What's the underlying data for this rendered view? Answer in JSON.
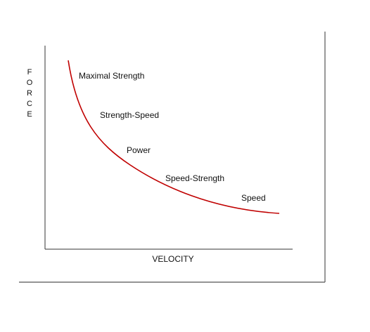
{
  "y_axis_title": "FORCE",
  "x_axis_title": "VELOCITY",
  "labels": [
    "Maximal Strength",
    "Strength-Speed",
    "Power",
    "Speed-Strength",
    "Speed"
  ]
}
